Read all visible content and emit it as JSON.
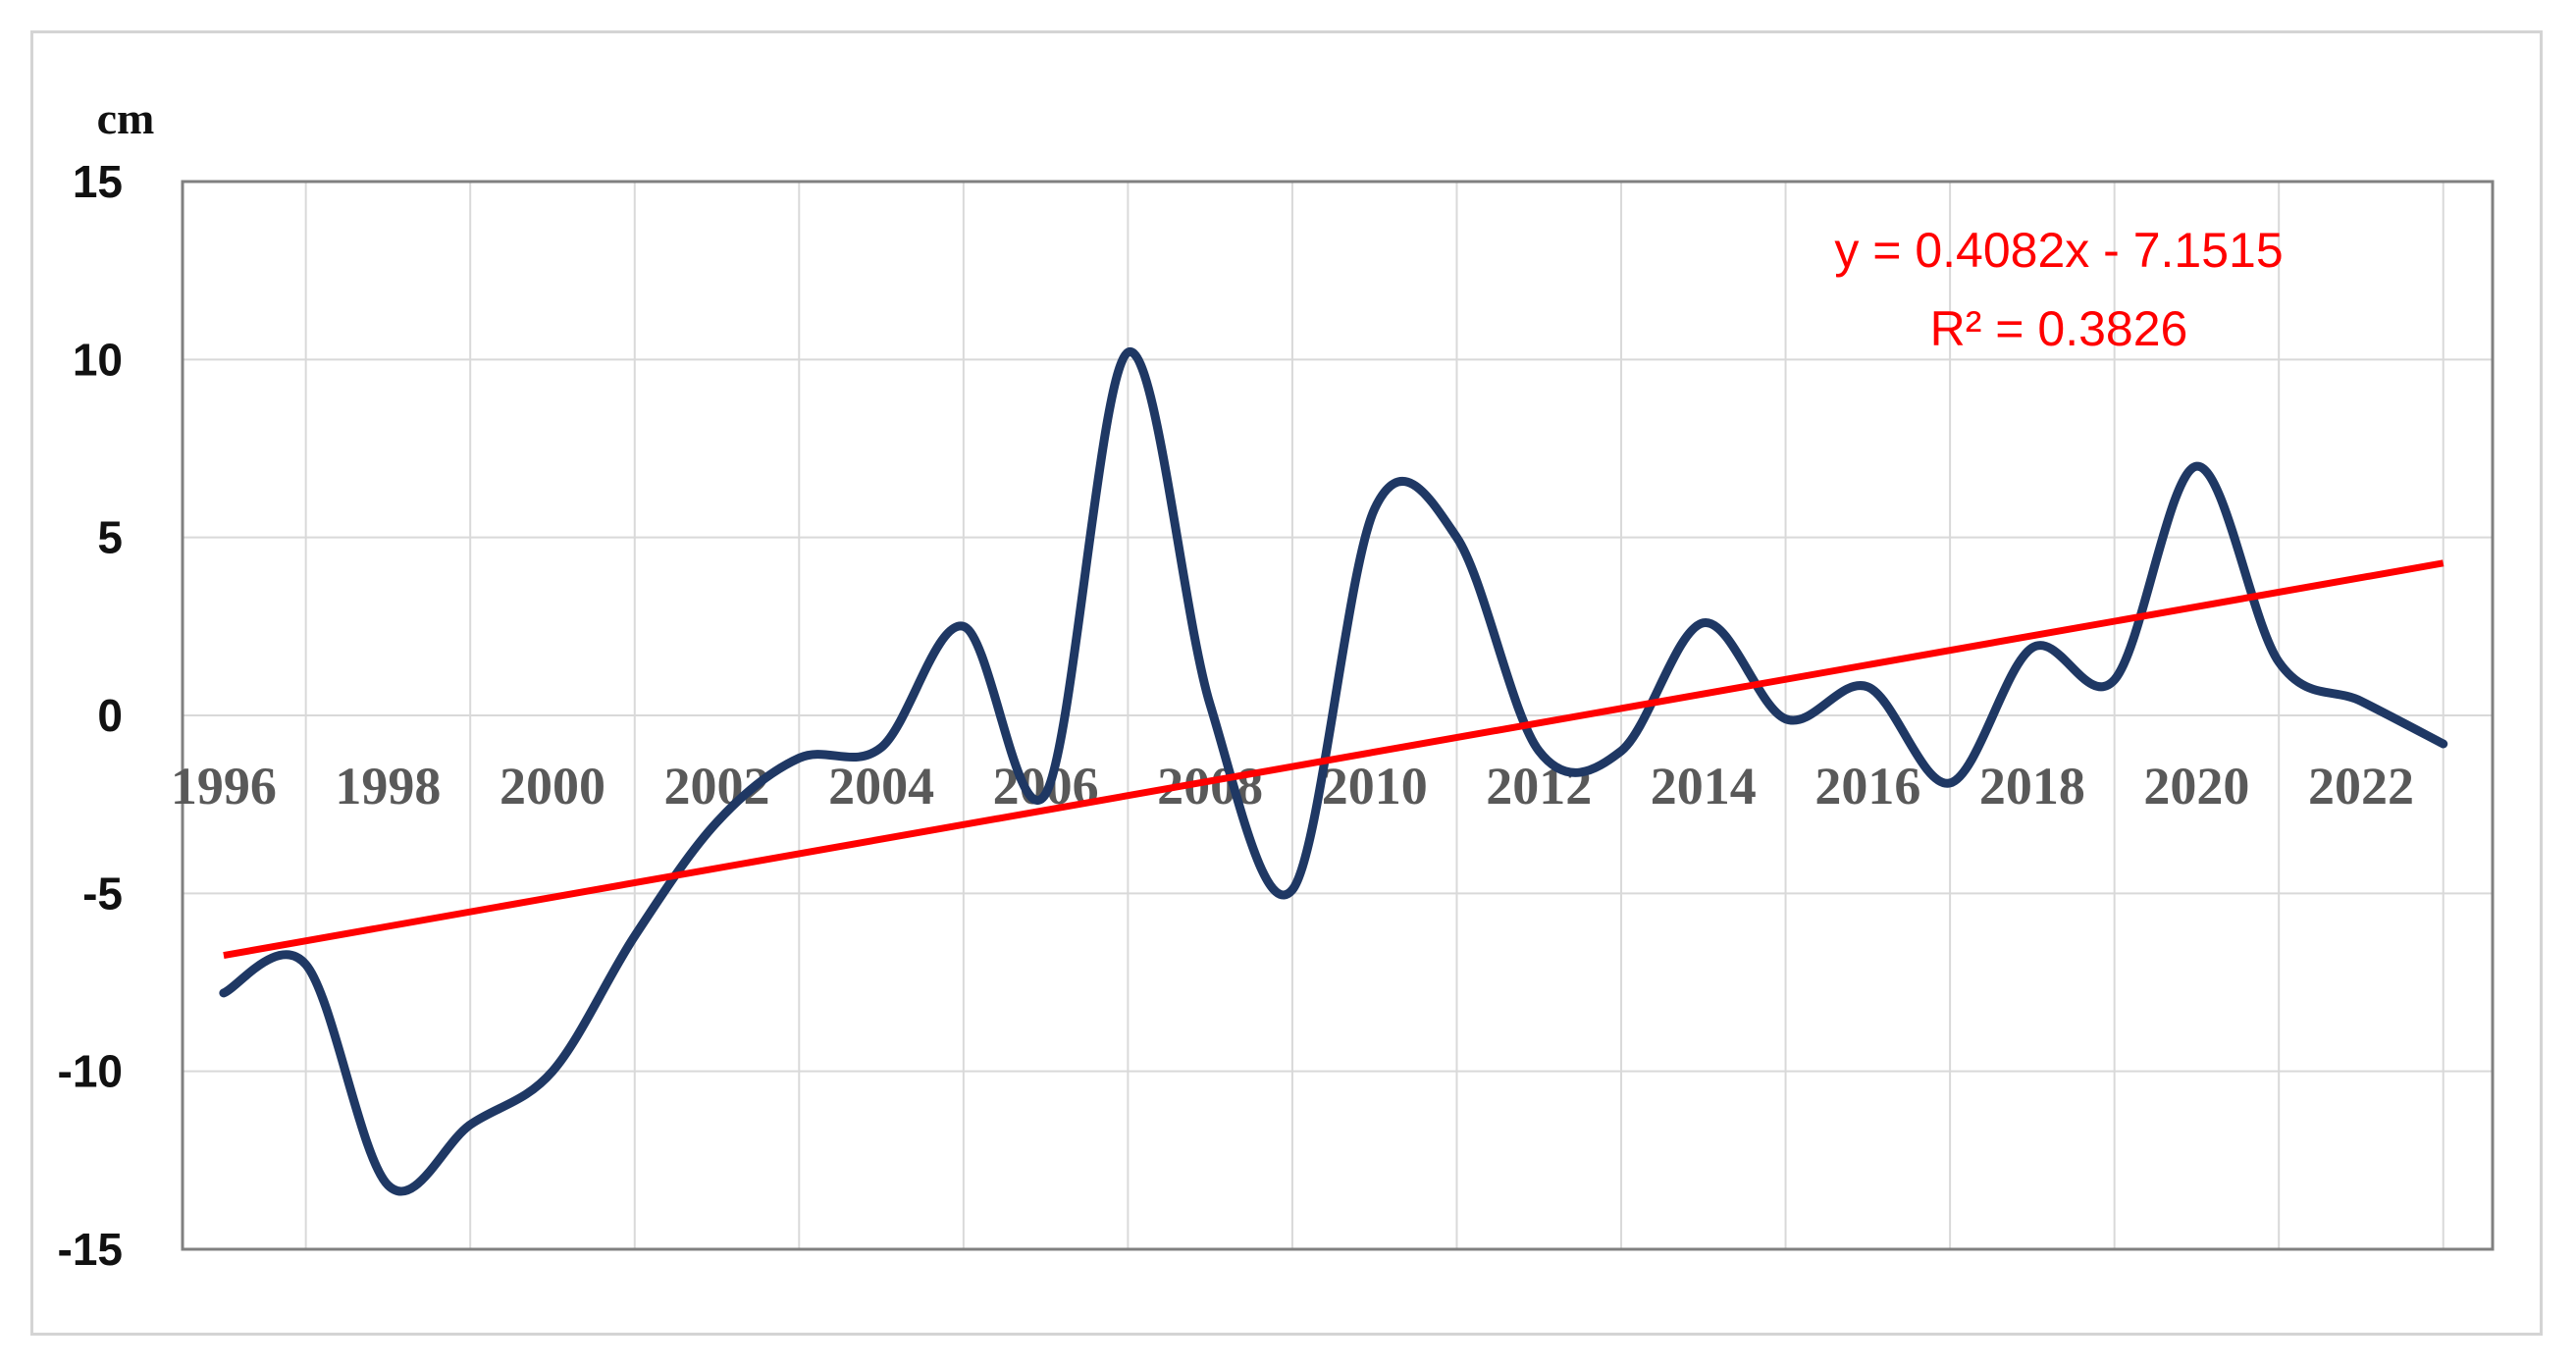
{
  "chart_data": {
    "type": "line",
    "title": "",
    "xlabel": "",
    "ylabel": "cm",
    "xlim": [
      1995.5,
      2023.6
    ],
    "ylim": [
      -15,
      15
    ],
    "yticks": [
      -15,
      -10,
      -5,
      0,
      5,
      10,
      15
    ],
    "xticks": [
      1996,
      1998,
      2000,
      2002,
      2004,
      2006,
      2008,
      2010,
      2012,
      2014,
      2016,
      2018,
      2020,
      2022
    ],
    "grid": true,
    "legend": "none",
    "series": [
      {
        "color": "#1f3864",
        "smooth": true,
        "x": [
          1996,
          1997,
          1998,
          1999,
          2000,
          2001,
          2002,
          2003,
          2004,
          2005,
          2006,
          2007,
          2008,
          2009,
          2010,
          2011,
          2012,
          2013,
          2014,
          2015,
          2016,
          2017,
          2018,
          2019,
          2020,
          2021,
          2022,
          2023
        ],
        "values": [
          -7.8,
          -7.0,
          -13.2,
          -11.5,
          -10.0,
          -6.2,
          -3.0,
          -1.2,
          -0.9,
          2.5,
          -2.2,
          10.2,
          0.3,
          -4.9,
          5.8,
          5.0,
          -1.0,
          -1.0,
          2.6,
          -0.1,
          0.8,
          -1.9,
          1.9,
          1.0,
          7.0,
          1.5,
          0.4,
          -0.8
        ]
      }
    ],
    "trendline": {
      "color": "#ff0000",
      "slope": 0.4082,
      "intercept": -7.1515,
      "equation": "y = 0.4082x - 7.1515",
      "r_squared": "R² = 0.3826"
    },
    "colors": {
      "grid": "#d9d9d9",
      "axis_border": "#808080",
      "frame": "#d4d4d4"
    }
  }
}
